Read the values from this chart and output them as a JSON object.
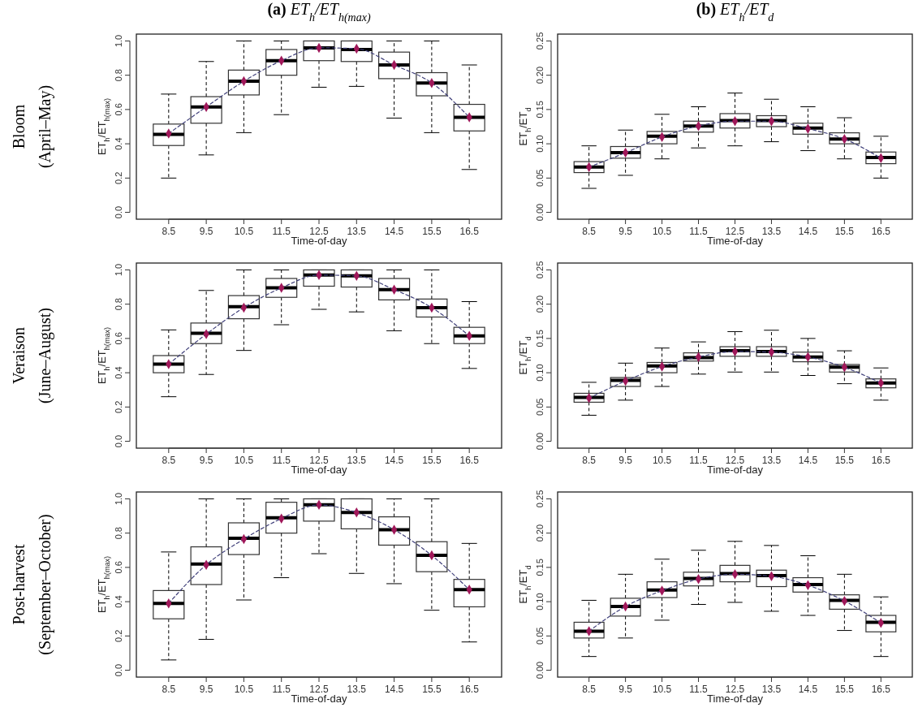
{
  "chart_data": [
    {
      "type": "box",
      "title": "(a) ET$_{h}$/ET$_{h(max)}$",
      "xlabel": "Time-of-day",
      "ylabel": "ET$_{h}$/ET$_{h(max)}$",
      "annotations": [
        "Bloom\n(April–May)"
      ],
      "categories": [
        "8.5",
        "9.5",
        "10.5",
        "11.5",
        "12.5",
        "13.5",
        "14.5",
        "15.5",
        "16.5"
      ],
      "ylim": [
        -0.04,
        1.04
      ],
      "yticks": [
        {
          "value": 0,
          "label": "0.0"
        },
        {
          "value": 0.2,
          "label": "0.2"
        },
        {
          "value": 0.4,
          "label": "0.4"
        },
        {
          "value": 0.6,
          "label": "0.6"
        },
        {
          "value": 0.8,
          "label": "0.8"
        },
        {
          "value": 1,
          "label": "1.0"
        }
      ],
      "boxes": [
        {
          "low": 0.2,
          "q1": 0.39,
          "median": 0.455,
          "q3": 0.515,
          "high": 0.69
        },
        {
          "low": 0.335,
          "q1": 0.52,
          "median": 0.615,
          "q3": 0.675,
          "high": 0.88
        },
        {
          "low": 0.465,
          "q1": 0.685,
          "median": 0.765,
          "q3": 0.83,
          "high": 1.0
        },
        {
          "low": 0.57,
          "q1": 0.8,
          "median": 0.885,
          "q3": 0.95,
          "high": 1.0
        },
        {
          "low": 0.73,
          "q1": 0.885,
          "median": 0.96,
          "q3": 1.0,
          "high": 1.0
        },
        {
          "low": 0.735,
          "q1": 0.88,
          "median": 0.95,
          "q3": 1.0,
          "high": 1.0
        },
        {
          "low": 0.55,
          "q1": 0.78,
          "median": 0.86,
          "q3": 0.935,
          "high": 1.0
        },
        {
          "low": 0.465,
          "q1": 0.68,
          "median": 0.755,
          "q3": 0.815,
          "high": 1.0
        },
        {
          "low": 0.25,
          "q1": 0.475,
          "median": 0.555,
          "q3": 0.63,
          "high": 0.86
        }
      ],
      "series": [
        {
          "type": "line",
          "line_style": "dashed",
          "marker": "none",
          "color": "#40407a",
          "values": [
            0.46,
            0.615,
            0.765,
            0.885,
            0.96,
            0.955,
            0.86,
            0.755,
            0.555
          ]
        },
        {
          "type": "scatter",
          "marker": "diamond",
          "color": "#a0185a",
          "values": [
            0.46,
            0.615,
            0.765,
            0.885,
            0.96,
            0.955,
            0.86,
            0.755,
            0.555
          ]
        }
      ]
    },
    {
      "type": "box",
      "title": "(b) ET$_{h}$/ET$_{d}$",
      "xlabel": "Time-of-day",
      "ylabel": "ET$_{h}$/ET$_{d}$",
      "categories": [
        "8.5",
        "9.5",
        "10.5",
        "11.5",
        "12.5",
        "13.5",
        "14.5",
        "15.5",
        "16.5"
      ],
      "ylim": [
        -0.01,
        0.26
      ],
      "yticks": [
        {
          "value": 0,
          "label": "0.00"
        },
        {
          "value": 0.05,
          "label": "0.05"
        },
        {
          "value": 0.1,
          "label": "0.10"
        },
        {
          "value": 0.15,
          "label": "0.15"
        },
        {
          "value": 0.2,
          "label": "0.20"
        },
        {
          "value": 0.25,
          "label": "0.25"
        }
      ],
      "boxes": [
        {
          "low": 0.035,
          "q1": 0.058,
          "median": 0.066,
          "q3": 0.074,
          "high": 0.097
        },
        {
          "low": 0.054,
          "q1": 0.079,
          "median": 0.087,
          "q3": 0.096,
          "high": 0.12
        },
        {
          "low": 0.078,
          "q1": 0.1,
          "median": 0.111,
          "q3": 0.118,
          "high": 0.143
        },
        {
          "low": 0.094,
          "q1": 0.117,
          "median": 0.126,
          "q3": 0.133,
          "high": 0.154
        },
        {
          "low": 0.097,
          "q1": 0.123,
          "median": 0.134,
          "q3": 0.144,
          "high": 0.174
        },
        {
          "low": 0.103,
          "q1": 0.125,
          "median": 0.134,
          "q3": 0.141,
          "high": 0.165
        },
        {
          "low": 0.09,
          "q1": 0.114,
          "median": 0.123,
          "q3": 0.13,
          "high": 0.154
        },
        {
          "low": 0.078,
          "q1": 0.1,
          "median": 0.107,
          "q3": 0.116,
          "high": 0.138
        },
        {
          "low": 0.05,
          "q1": 0.071,
          "median": 0.08,
          "q3": 0.088,
          "high": 0.111
        }
      ],
      "series": [
        {
          "type": "line",
          "line_style": "dashed",
          "marker": "none",
          "color": "#40407a",
          "values": [
            0.066,
            0.087,
            0.11,
            0.126,
            0.133,
            0.133,
            0.122,
            0.107,
            0.079
          ]
        },
        {
          "type": "scatter",
          "marker": "diamond",
          "color": "#a0185a",
          "values": [
            0.066,
            0.087,
            0.11,
            0.126,
            0.133,
            0.133,
            0.122,
            0.107,
            0.079
          ]
        }
      ]
    },
    {
      "type": "box",
      "xlabel": "Time-of-day",
      "ylabel": "ET$_{h}$/ET$_{h(max)}$",
      "annotations": [
        "Veraison\n(June–August)"
      ],
      "categories": [
        "8.5",
        "9.5",
        "10.5",
        "11.5",
        "12.5",
        "13.5",
        "14.5",
        "15.5",
        "16.5"
      ],
      "ylim": [
        -0.04,
        1.04
      ],
      "yticks": [
        {
          "value": 0,
          "label": "0.0"
        },
        {
          "value": 0.2,
          "label": "0.2"
        },
        {
          "value": 0.4,
          "label": "0.4"
        },
        {
          "value": 0.6,
          "label": "0.6"
        },
        {
          "value": 0.8,
          "label": "0.8"
        },
        {
          "value": 1,
          "label": "1.0"
        }
      ],
      "boxes": [
        {
          "low": 0.26,
          "q1": 0.4,
          "median": 0.45,
          "q3": 0.5,
          "high": 0.65
        },
        {
          "low": 0.39,
          "q1": 0.57,
          "median": 0.63,
          "q3": 0.69,
          "high": 0.88
        },
        {
          "low": 0.53,
          "q1": 0.715,
          "median": 0.785,
          "q3": 0.85,
          "high": 1.0
        },
        {
          "low": 0.68,
          "q1": 0.84,
          "median": 0.895,
          "q3": 0.95,
          "high": 1.0
        },
        {
          "low": 0.77,
          "q1": 0.905,
          "median": 0.97,
          "q3": 1.0,
          "high": 1.0
        },
        {
          "low": 0.755,
          "q1": 0.9,
          "median": 0.965,
          "q3": 1.0,
          "high": 1.0
        },
        {
          "low": 0.645,
          "q1": 0.825,
          "median": 0.885,
          "q3": 0.95,
          "high": 1.0
        },
        {
          "low": 0.57,
          "q1": 0.725,
          "median": 0.78,
          "q3": 0.83,
          "high": 1.0
        },
        {
          "low": 0.425,
          "q1": 0.57,
          "median": 0.615,
          "q3": 0.665,
          "high": 0.815
        }
      ],
      "series": [
        {
          "type": "line",
          "line_style": "dashed",
          "marker": "none",
          "color": "#40407a",
          "values": [
            0.45,
            0.625,
            0.78,
            0.895,
            0.97,
            0.965,
            0.885,
            0.78,
            0.615
          ]
        },
        {
          "type": "scatter",
          "marker": "diamond",
          "color": "#a0185a",
          "values": [
            0.45,
            0.625,
            0.78,
            0.895,
            0.97,
            0.965,
            0.885,
            0.78,
            0.615
          ]
        }
      ]
    },
    {
      "type": "box",
      "xlabel": "Time-of-day",
      "ylabel": "ET$_{h}$/ET$_{d}$",
      "categories": [
        "8.5",
        "9.5",
        "10.5",
        "11.5",
        "12.5",
        "13.5",
        "14.5",
        "15.5",
        "16.5"
      ],
      "ylim": [
        -0.01,
        0.26
      ],
      "yticks": [
        {
          "value": 0,
          "label": "0.00"
        },
        {
          "value": 0.05,
          "label": "0.05"
        },
        {
          "value": 0.1,
          "label": "0.10"
        },
        {
          "value": 0.15,
          "label": "0.15"
        },
        {
          "value": 0.2,
          "label": "0.20"
        },
        {
          "value": 0.25,
          "label": "0.25"
        }
      ],
      "boxes": [
        {
          "low": 0.038,
          "q1": 0.057,
          "median": 0.064,
          "q3": 0.07,
          "high": 0.086
        },
        {
          "low": 0.06,
          "q1": 0.08,
          "median": 0.089,
          "q3": 0.093,
          "high": 0.114
        },
        {
          "low": 0.08,
          "q1": 0.1,
          "median": 0.11,
          "q3": 0.115,
          "high": 0.136
        },
        {
          "low": 0.098,
          "q1": 0.117,
          "median": 0.122,
          "q3": 0.129,
          "high": 0.145
        },
        {
          "low": 0.101,
          "q1": 0.124,
          "median": 0.132,
          "q3": 0.138,
          "high": 0.16
        },
        {
          "low": 0.101,
          "q1": 0.124,
          "median": 0.131,
          "q3": 0.138,
          "high": 0.162
        },
        {
          "low": 0.096,
          "q1": 0.116,
          "median": 0.123,
          "q3": 0.13,
          "high": 0.15
        },
        {
          "low": 0.084,
          "q1": 0.101,
          "median": 0.108,
          "q3": 0.112,
          "high": 0.132
        },
        {
          "low": 0.06,
          "q1": 0.078,
          "median": 0.085,
          "q3": 0.091,
          "high": 0.107
        }
      ],
      "series": [
        {
          "type": "line",
          "line_style": "dashed",
          "marker": "none",
          "color": "#40407a",
          "values": [
            0.063,
            0.088,
            0.109,
            0.123,
            0.131,
            0.13,
            0.123,
            0.108,
            0.085
          ]
        },
        {
          "type": "scatter",
          "marker": "diamond",
          "color": "#a0185a",
          "values": [
            0.063,
            0.088,
            0.109,
            0.123,
            0.131,
            0.13,
            0.123,
            0.108,
            0.085
          ]
        }
      ]
    },
    {
      "type": "box",
      "xlabel": "Time-of-day",
      "ylabel": "ET$_{h}$/ET$_{h(max)}$",
      "annotations": [
        "Post-harvest\n(September–October)"
      ],
      "categories": [
        "8.5",
        "9.5",
        "10.5",
        "11.5",
        "12.5",
        "13.5",
        "14.5",
        "15.5",
        "16.5"
      ],
      "ylim": [
        -0.04,
        1.04
      ],
      "yticks": [
        {
          "value": 0,
          "label": "0.0"
        },
        {
          "value": 0.2,
          "label": "0.2"
        },
        {
          "value": 0.4,
          "label": "0.4"
        },
        {
          "value": 0.6,
          "label": "0.6"
        },
        {
          "value": 0.8,
          "label": "0.8"
        },
        {
          "value": 1,
          "label": "1.0"
        }
      ],
      "boxes": [
        {
          "low": 0.06,
          "q1": 0.3,
          "median": 0.39,
          "q3": 0.465,
          "high": 0.69
        },
        {
          "low": 0.18,
          "q1": 0.5,
          "median": 0.62,
          "q3": 0.72,
          "high": 1.0
        },
        {
          "low": 0.41,
          "q1": 0.675,
          "median": 0.77,
          "q3": 0.86,
          "high": 1.0
        },
        {
          "low": 0.54,
          "q1": 0.8,
          "median": 0.89,
          "q3": 0.98,
          "high": 1.0
        },
        {
          "low": 0.68,
          "q1": 0.87,
          "median": 0.965,
          "q3": 1.0,
          "high": 1.0
        },
        {
          "low": 0.565,
          "q1": 0.825,
          "median": 0.92,
          "q3": 1.0,
          "high": 1.0
        },
        {
          "low": 0.505,
          "q1": 0.73,
          "median": 0.82,
          "q3": 0.895,
          "high": 1.0
        },
        {
          "low": 0.35,
          "q1": 0.575,
          "median": 0.67,
          "q3": 0.75,
          "high": 1.0
        },
        {
          "low": 0.165,
          "q1": 0.37,
          "median": 0.47,
          "q3": 0.53,
          "high": 0.74
        }
      ],
      "series": [
        {
          "type": "line",
          "line_style": "dashed",
          "marker": "none",
          "color": "#40407a",
          "values": [
            0.39,
            0.615,
            0.765,
            0.885,
            0.965,
            0.92,
            0.82,
            0.67,
            0.47
          ]
        },
        {
          "type": "scatter",
          "marker": "diamond",
          "color": "#a0185a",
          "values": [
            0.39,
            0.615,
            0.765,
            0.885,
            0.965,
            0.92,
            0.82,
            0.67,
            0.47
          ]
        }
      ]
    },
    {
      "type": "box",
      "xlabel": "Time-of-day",
      "ylabel": "ET$_{h}$/ET$_{d}$",
      "categories": [
        "8.5",
        "9.5",
        "10.5",
        "11.5",
        "12.5",
        "13.5",
        "14.5",
        "15.5",
        "16.5"
      ],
      "ylim": [
        -0.01,
        0.26
      ],
      "yticks": [
        {
          "value": 0,
          "label": "0.00"
        },
        {
          "value": 0.05,
          "label": "0.05"
        },
        {
          "value": 0.1,
          "label": "0.10"
        },
        {
          "value": 0.15,
          "label": "0.15"
        },
        {
          "value": 0.2,
          "label": "0.20"
        },
        {
          "value": 0.25,
          "label": "0.25"
        }
      ],
      "boxes": [
        {
          "low": 0.02,
          "q1": 0.047,
          "median": 0.057,
          "q3": 0.07,
          "high": 0.102
        },
        {
          "low": 0.047,
          "q1": 0.079,
          "median": 0.093,
          "q3": 0.105,
          "high": 0.14
        },
        {
          "low": 0.073,
          "q1": 0.106,
          "median": 0.117,
          "q3": 0.129,
          "high": 0.162
        },
        {
          "low": 0.096,
          "q1": 0.123,
          "median": 0.134,
          "q3": 0.143,
          "high": 0.175
        },
        {
          "low": 0.099,
          "q1": 0.129,
          "median": 0.141,
          "q3": 0.153,
          "high": 0.188
        },
        {
          "low": 0.086,
          "q1": 0.122,
          "median": 0.138,
          "q3": 0.146,
          "high": 0.182
        },
        {
          "low": 0.08,
          "q1": 0.114,
          "median": 0.125,
          "q3": 0.135,
          "high": 0.167
        },
        {
          "low": 0.058,
          "q1": 0.089,
          "median": 0.102,
          "q3": 0.11,
          "high": 0.14
        },
        {
          "low": 0.02,
          "q1": 0.056,
          "median": 0.07,
          "q3": 0.08,
          "high": 0.107
        }
      ],
      "series": [
        {
          "type": "line",
          "line_style": "dashed",
          "marker": "none",
          "color": "#40407a",
          "values": [
            0.057,
            0.093,
            0.116,
            0.133,
            0.14,
            0.137,
            0.124,
            0.101,
            0.069
          ]
        },
        {
          "type": "scatter",
          "marker": "diamond",
          "color": "#a0185a",
          "values": [
            0.057,
            0.093,
            0.116,
            0.133,
            0.14,
            0.137,
            0.124,
            0.101,
            0.069
          ]
        }
      ]
    }
  ]
}
